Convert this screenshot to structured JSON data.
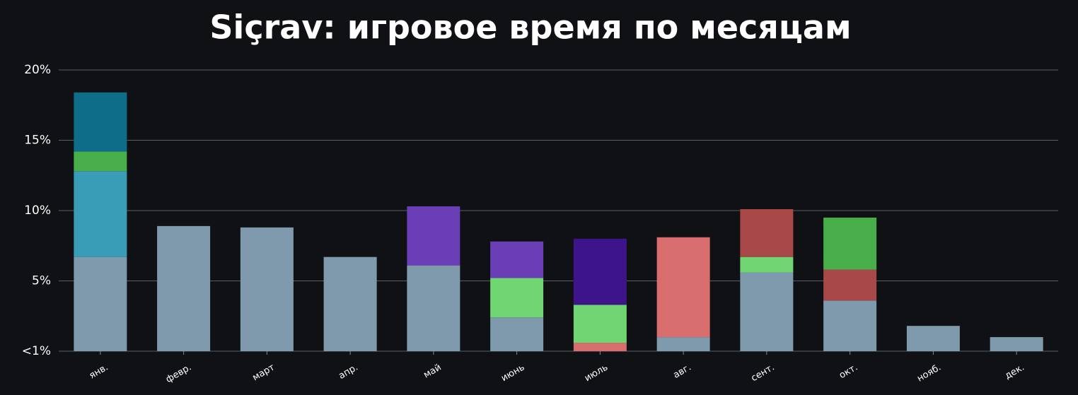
{
  "chart_data": {
    "type": "stacked_bar",
    "title": "Siçrav: игровое время по месяцам",
    "categories": [
      "янв.",
      "февр.",
      "март",
      "апр.",
      "май",
      "июнь",
      "июль",
      "авг.",
      "сент.",
      "окт.",
      "нояб.",
      "дек."
    ],
    "series": [
      {
        "color": "#7f9aad",
        "values": [
          6.7,
          8.9,
          8.8,
          6.7,
          6.1,
          2.4,
          null,
          1.0,
          5.6,
          3.6,
          1.8,
          1.0
        ]
      },
      {
        "color": "#3a9db8",
        "values": [
          6.1,
          null,
          null,
          null,
          null,
          null,
          null,
          null,
          null,
          null,
          null,
          null
        ]
      },
      {
        "color": "#d86d6d",
        "values": [
          null,
          null,
          null,
          null,
          null,
          null,
          0.6,
          7.1,
          null,
          null,
          null,
          null
        ]
      },
      {
        "color": "#6fd672",
        "values": [
          null,
          null,
          null,
          null,
          null,
          2.8,
          2.7,
          null,
          1.1,
          null,
          null,
          null
        ]
      },
      {
        "color": "#a84848",
        "values": [
          null,
          null,
          null,
          null,
          null,
          null,
          null,
          null,
          3.4,
          2.2,
          null,
          null
        ]
      },
      {
        "color": "#47ae4a",
        "values": [
          1.4,
          null,
          null,
          null,
          null,
          null,
          null,
          null,
          null,
          3.7,
          null,
          null
        ]
      },
      {
        "color": "#6a3fb5",
        "values": [
          null,
          null,
          null,
          null,
          4.2,
          2.6,
          null,
          null,
          null,
          null,
          null,
          null
        ]
      },
      {
        "color": "#3d148a",
        "values": [
          null,
          null,
          null,
          null,
          null,
          null,
          4.7,
          null,
          null,
          null,
          null,
          null
        ]
      },
      {
        "color": "#0e6e8a",
        "values": [
          4.2,
          null,
          null,
          null,
          null,
          null,
          null,
          null,
          null,
          null,
          null,
          null
        ]
      }
    ],
    "ylim": [
      0,
      20
    ],
    "yticks": [
      {
        "value": 0,
        "label": "<1%"
      },
      {
        "value": 5,
        "label": "5%"
      },
      {
        "value": 10,
        "label": "10%"
      },
      {
        "value": 15,
        "label": "15%"
      },
      {
        "value": 20,
        "label": "20%"
      }
    ],
    "grid": true
  }
}
